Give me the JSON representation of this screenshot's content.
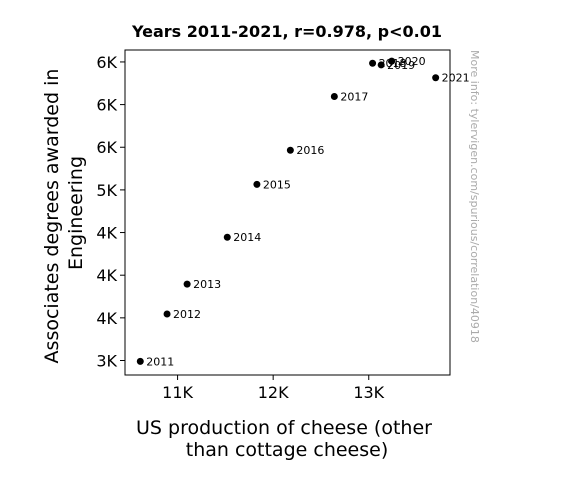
{
  "chart_data": {
    "type": "scatter",
    "title": "Years 2011-2021, r=0.978, p<0.01",
    "xlabel": [
      "US production of cheese (other",
      "than cottage cheese)"
    ],
    "ylabel": [
      "Associates degrees awarded in",
      "Engineering"
    ],
    "watermark": "More info: tylervigen.com/spurious/correlation/40918",
    "xlim": [
      10450,
      13850
    ],
    "ylim": [
      2830,
      6640
    ],
    "x_ticks": [
      {
        "value": 11000,
        "label": "11K"
      },
      {
        "value": 12000,
        "label": "12K"
      },
      {
        "value": 13000,
        "label": "13K"
      }
    ],
    "y_ticks": [
      {
        "value": 3000,
        "label": "3K"
      },
      {
        "value": 3500,
        "label": "4K"
      },
      {
        "value": 4000,
        "label": "4K"
      },
      {
        "value": 4500,
        "label": "4K"
      },
      {
        "value": 5000,
        "label": "5K"
      },
      {
        "value": 5500,
        "label": "6K"
      },
      {
        "value": 6000,
        "label": "6K"
      },
      {
        "value": 6500,
        "label": "6K"
      }
    ],
    "grid": false,
    "marker_color": "#000000",
    "points": [
      {
        "label": "2011",
        "x": 10610,
        "y": 2990
      },
      {
        "label": "2012",
        "x": 10890,
        "y": 3545
      },
      {
        "label": "2013",
        "x": 11100,
        "y": 3895
      },
      {
        "label": "2014",
        "x": 11520,
        "y": 4445
      },
      {
        "label": "2015",
        "x": 11830,
        "y": 5065
      },
      {
        "label": "2016",
        "x": 12180,
        "y": 5465
      },
      {
        "label": "2017",
        "x": 12640,
        "y": 6095
      },
      {
        "label": "2018",
        "x": 13040,
        "y": 6485
      },
      {
        "label": "2019",
        "x": 13130,
        "y": 6465
      },
      {
        "label": "2020",
        "x": 13240,
        "y": 6510
      },
      {
        "label": "2021",
        "x": 13700,
        "y": 6315
      }
    ]
  }
}
